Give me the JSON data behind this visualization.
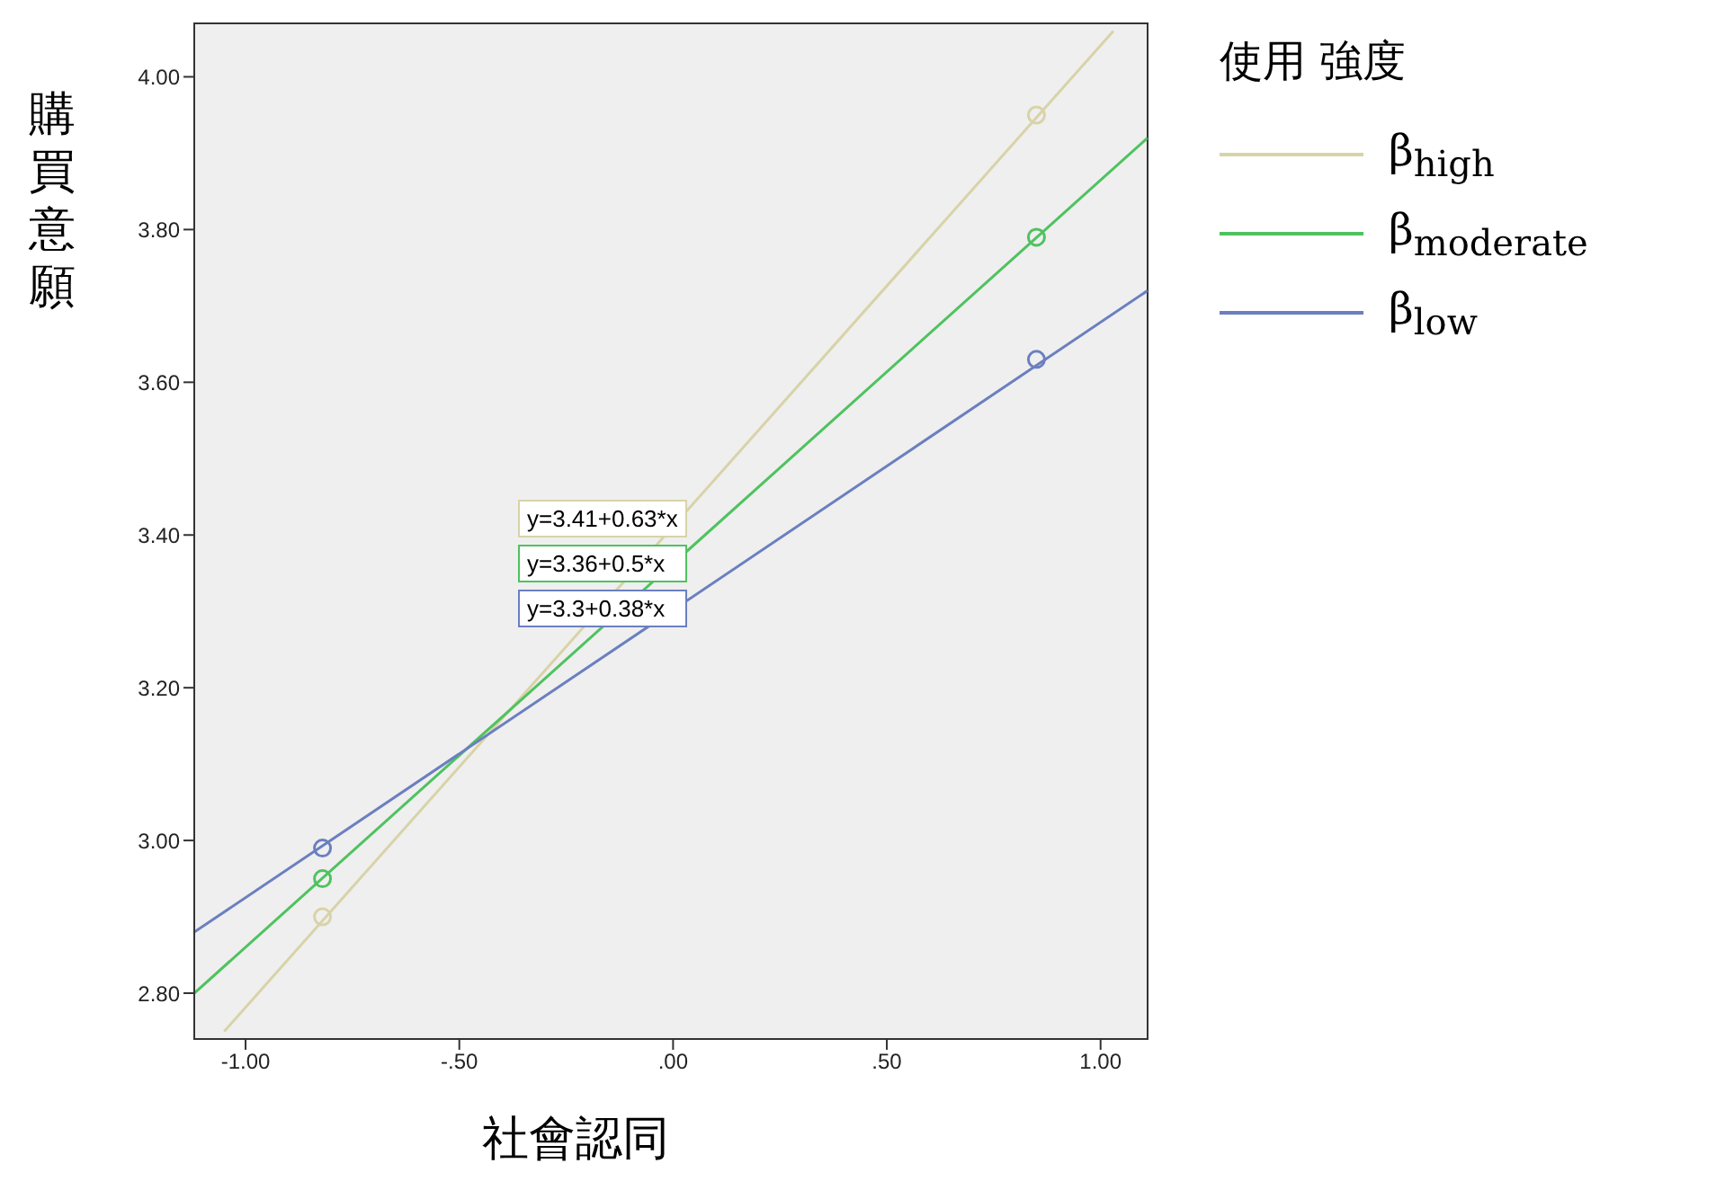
{
  "chart_data": {
    "type": "line",
    "xlabel": "社會認同",
    "ylabel": "購買意願",
    "legend_title": "使用 強度",
    "xlim": [
      -1.12,
      1.11
    ],
    "xticks": [
      {
        "value": -1,
        "label": "-1.00"
      },
      {
        "value": -0.5,
        "label": "-.50"
      },
      {
        "value": 0,
        "label": ".00"
      },
      {
        "value": 0.5,
        "label": ".50"
      },
      {
        "value": 1,
        "label": "1.00"
      }
    ],
    "ylim": [
      2.74,
      4.07
    ],
    "yticks": [
      {
        "value": 2.8,
        "label": "2.80"
      },
      {
        "value": 3.0,
        "label": "3.00"
      },
      {
        "value": 3.2,
        "label": "3.20"
      },
      {
        "value": 3.4,
        "label": "3.40"
      },
      {
        "value": 3.6,
        "label": "3.60"
      },
      {
        "value": 3.8,
        "label": "3.80"
      },
      {
        "value": 4.0,
        "label": "4.00"
      }
    ],
    "legend": "top right",
    "line_style": "solid",
    "series": [
      {
        "name": "β$_{high}$",
        "marker": "none",
        "color": "#d8d3a8",
        "x": [
          -1.05,
          1.03
        ],
        "values": [
          2.75,
          4.06
        ]
      },
      {
        "name": "β$_{moderate}$",
        "marker": "none",
        "color": "#4fc25f",
        "x": [
          -1.12,
          1.11
        ],
        "values": [
          2.8,
          3.92
        ]
      },
      {
        "name": "β$_{low}$",
        "marker": "none",
        "color": "#6b7fc0",
        "x": [
          -1.12,
          1.11
        ],
        "values": [
          2.88,
          3.72
        ]
      },
      {
        "type": "scatter",
        "marker": "circle",
        "color": "#d8d3a8",
        "x": [
          -0.82,
          0.85
        ],
        "values": [
          2.9,
          3.95
        ]
      },
      {
        "type": "scatter",
        "marker": "circle",
        "color": "#4fc25f",
        "x": [
          -0.82,
          0.85
        ],
        "values": [
          2.95,
          3.79
        ]
      },
      {
        "type": "scatter",
        "marker": "circle",
        "color": "#6b7fc0",
        "x": [
          -0.82,
          0.85
        ],
        "values": [
          2.99,
          3.63
        ]
      }
    ],
    "annotations": [
      "y=3.41+0.63*x",
      "y=3.36+0.5*x",
      "y=3.3+0.38*x"
    ]
  }
}
